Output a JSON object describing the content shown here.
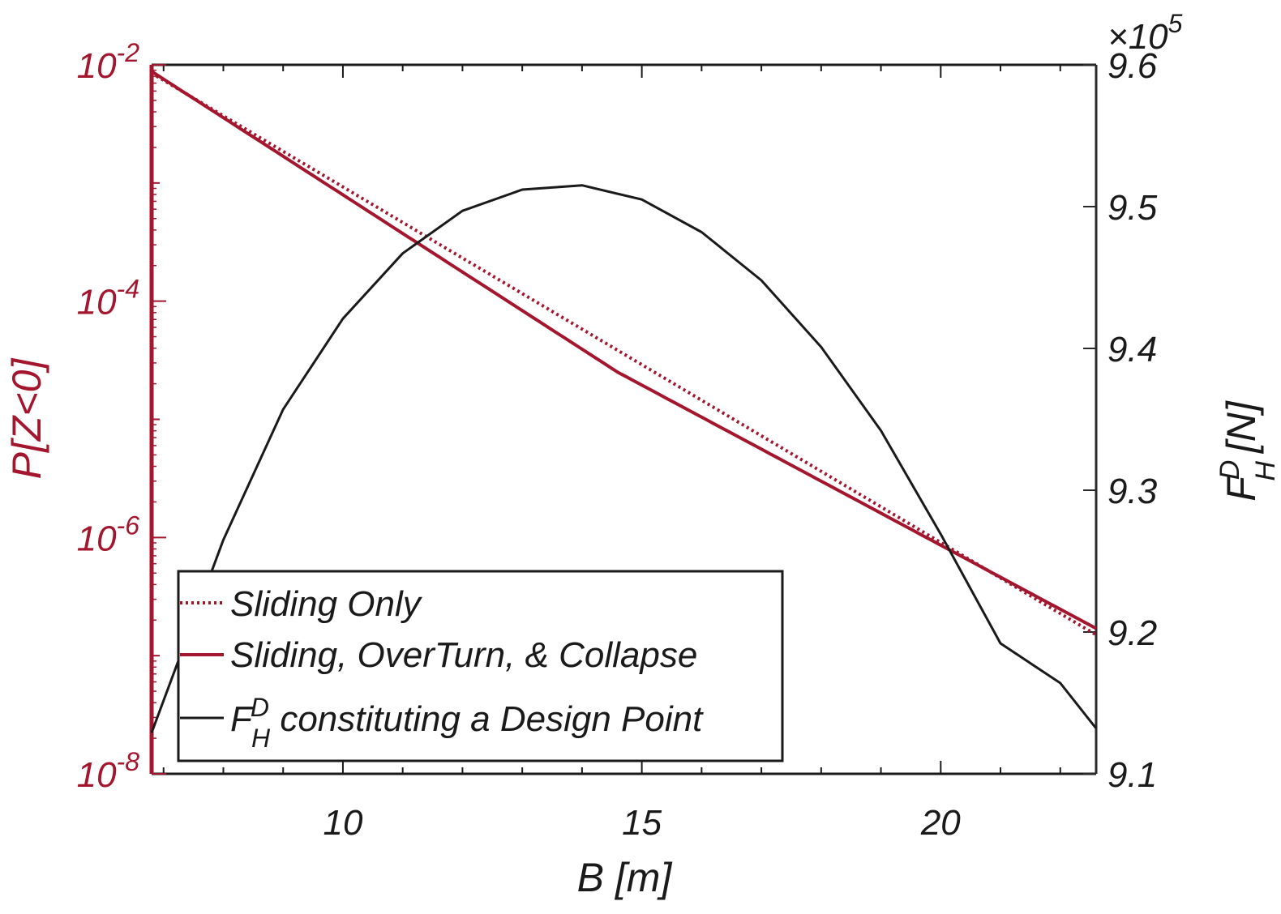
{
  "colors": {
    "left_axis": "#a3162e",
    "right_axis": "#2a2a2a",
    "sliding_only": "#a3162e",
    "combined": "#a3162e",
    "design_point": "#1a1a1a"
  },
  "chart_data": {
    "type": "line",
    "xlabel": "B [m]",
    "ylabel_left": "P[Z<0]",
    "ylabel_right_main": "F",
    "ylabel_right_sup": "D",
    "ylabel_right_sub": "H",
    "ylabel_right_unit": "[N]",
    "right_multiplier": "×10",
    "right_multiplier_exp": "5",
    "xlim": [
      6.8,
      22.6
    ],
    "ylim_left": [
      1e-08,
      0.01
    ],
    "left_scale": "log",
    "ylim_right": [
      9.1,
      9.6
    ],
    "x_ticks": [
      "10",
      "15",
      "20"
    ],
    "left_ticks": [
      {
        "base": "10",
        "exp": "-2"
      },
      {
        "base": "10",
        "exp": "-4"
      },
      {
        "base": "10",
        "exp": "-6"
      },
      {
        "base": "10",
        "exp": "-8"
      }
    ],
    "right_ticks": [
      "9.1",
      "9.2",
      "9.3",
      "9.4",
      "9.5",
      "9.6"
    ],
    "grid": false,
    "legend_position": "bottom-left",
    "series": [
      {
        "name": "Sliding Only",
        "axis": "left",
        "style": "dotted",
        "x": [
          6.8,
          22.6
        ],
        "y": [
          0.0085,
          1.5e-07
        ]
      },
      {
        "name": "Sliding, OverTurn, & Collapse",
        "axis": "left",
        "style": "solid",
        "x": [
          6.8,
          14.6,
          22.6
        ],
        "y": [
          0.0088,
          2.5e-05,
          1.7e-07
        ]
      },
      {
        "name": "F",
        "name_sup": "D",
        "name_sub": "H",
        "name_rest": " constituting a Design Point",
        "axis": "right",
        "style": "solid",
        "x": [
          6.8,
          8,
          9,
          10,
          11,
          12,
          13,
          14,
          15,
          16,
          17,
          18,
          19,
          20,
          21,
          22,
          22.6
        ],
        "y": [
          9.129,
          9.265,
          9.357,
          9.421,
          9.467,
          9.497,
          9.512,
          9.515,
          9.505,
          9.482,
          9.448,
          9.401,
          9.342,
          9.269,
          9.192,
          9.164,
          9.132
        ]
      }
    ]
  }
}
